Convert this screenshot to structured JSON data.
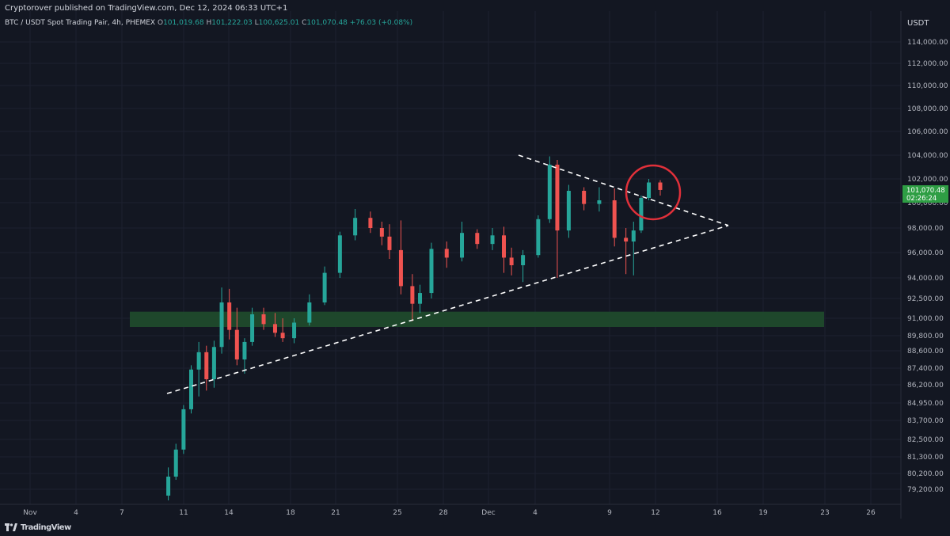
{
  "header": {
    "published_line": "Cryptorover published on TradingView.com, Dec 12, 2024 06:33 UTC+1"
  },
  "symbol_bar": {
    "name": "BTC / USDT Spot Trading Pair, 4h, PHEMEX",
    "open_key": "O",
    "open": "101,019.68",
    "high_key": "H",
    "high": "101,222.03",
    "low_key": "L",
    "low": "100,625.01",
    "close_key": "C",
    "close": "101,070.48",
    "change": "+76.03 (+0.08%)"
  },
  "price_axis": {
    "currency": "USDT",
    "labels": [
      "114,000.00",
      "112,000.00",
      "110,000.00",
      "108,000.00",
      "106,000.00",
      "104,000.00",
      "102,000.00",
      "100,000.00",
      "98,000.00",
      "96,000.00",
      "94,000.00",
      "92,500.00",
      "91,000.00",
      "89,800.00",
      "88,600.00",
      "87,400.00",
      "86,200.00",
      "84,950.00",
      "83,700.00",
      "82,500.00",
      "81,300.00",
      "80,200.00",
      "79,200.00"
    ],
    "current_price": "101,070.48",
    "countdown": "02:26:24"
  },
  "time_axis": {
    "labels": [
      "Nov",
      "4",
      "7",
      "11",
      "14",
      "18",
      "21",
      "25",
      "28",
      "Dec",
      "4",
      "9",
      "12",
      "16",
      "19",
      "23",
      "26"
    ]
  },
  "footer": {
    "brand": "TradingView"
  },
  "colors": {
    "background": "#131722",
    "up": "#26a69a",
    "down": "#ef5350",
    "support_zone": "#1f4a2c",
    "highlight_circle": "#e0303a",
    "price_tag": "#2e9e44"
  },
  "chart_data": {
    "type": "candlestick",
    "title": "BTC / USDT Spot Trading Pair, 4h, PHEMEX",
    "y_scale": "log",
    "ylim": [
      78500,
      116000
    ],
    "x_range": [
      "2024-11-01",
      "2024-12-27"
    ],
    "interval": "4h",
    "series": [
      {
        "date": "2024-11-10",
        "o": 78800,
        "h": 80600,
        "l": 78500,
        "c": 80000
      },
      {
        "date": "2024-11-10",
        "o": 80000,
        "h": 82200,
        "l": 79800,
        "c": 81800
      },
      {
        "date": "2024-11-11",
        "o": 81800,
        "h": 84800,
        "l": 81500,
        "c": 84500
      },
      {
        "date": "2024-11-11",
        "o": 84500,
        "h": 87600,
        "l": 84200,
        "c": 87300
      },
      {
        "date": "2024-11-12",
        "o": 87300,
        "h": 89300,
        "l": 85400,
        "c": 88500
      },
      {
        "date": "2024-11-12",
        "o": 88500,
        "h": 89000,
        "l": 85800,
        "c": 86600
      },
      {
        "date": "2024-11-13",
        "o": 86600,
        "h": 89400,
        "l": 86000,
        "c": 88900
      },
      {
        "date": "2024-11-13",
        "o": 88900,
        "h": 93300,
        "l": 88400,
        "c": 92200
      },
      {
        "date": "2024-11-14",
        "o": 92200,
        "h": 93200,
        "l": 89500,
        "c": 90200
      },
      {
        "date": "2024-11-14",
        "o": 90200,
        "h": 91800,
        "l": 87600,
        "c": 88000
      },
      {
        "date": "2024-11-15",
        "o": 88000,
        "h": 89600,
        "l": 87000,
        "c": 89300
      },
      {
        "date": "2024-11-15",
        "o": 89300,
        "h": 91800,
        "l": 89000,
        "c": 91300
      },
      {
        "date": "2024-11-16",
        "o": 91300,
        "h": 91800,
        "l": 90200,
        "c": 90600
      },
      {
        "date": "2024-11-17",
        "o": 90600,
        "h": 91400,
        "l": 89700,
        "c": 90000
      },
      {
        "date": "2024-11-17",
        "o": 90000,
        "h": 91000,
        "l": 89300,
        "c": 89600
      },
      {
        "date": "2024-11-18",
        "o": 89600,
        "h": 91000,
        "l": 89200,
        "c": 90700
      },
      {
        "date": "2024-11-19",
        "o": 90700,
        "h": 92800,
        "l": 90500,
        "c": 92200
      },
      {
        "date": "2024-11-20",
        "o": 92200,
        "h": 94900,
        "l": 92000,
        "c": 94400
      },
      {
        "date": "2024-11-21",
        "o": 94400,
        "h": 97700,
        "l": 94000,
        "c": 97400
      },
      {
        "date": "2024-11-22",
        "o": 97400,
        "h": 99500,
        "l": 97000,
        "c": 98800
      },
      {
        "date": "2024-11-23",
        "o": 98800,
        "h": 99300,
        "l": 97600,
        "c": 98000
      },
      {
        "date": "2024-11-24",
        "o": 98000,
        "h": 98500,
        "l": 96600,
        "c": 97300
      },
      {
        "date": "2024-11-24",
        "o": 97300,
        "h": 98300,
        "l": 95500,
        "c": 96200
      },
      {
        "date": "2024-11-25",
        "o": 96200,
        "h": 98600,
        "l": 92800,
        "c": 93400
      },
      {
        "date": "2024-11-26",
        "o": 93400,
        "h": 94300,
        "l": 90800,
        "c": 92100
      },
      {
        "date": "2024-11-26",
        "o": 92100,
        "h": 93500,
        "l": 91400,
        "c": 92900
      },
      {
        "date": "2024-11-27",
        "o": 92900,
        "h": 96800,
        "l": 92500,
        "c": 96300
      },
      {
        "date": "2024-11-28",
        "o": 96300,
        "h": 96900,
        "l": 94800,
        "c": 95600
      },
      {
        "date": "2024-11-29",
        "o": 95600,
        "h": 98500,
        "l": 95300,
        "c": 97600
      },
      {
        "date": "2024-11-30",
        "o": 97600,
        "h": 97900,
        "l": 96300,
        "c": 96700
      },
      {
        "date": "2024-12-01",
        "o": 96700,
        "h": 98000,
        "l": 96200,
        "c": 97400
      },
      {
        "date": "2024-12-02",
        "o": 97400,
        "h": 98100,
        "l": 94400,
        "c": 95600
      },
      {
        "date": "2024-12-02",
        "o": 95600,
        "h": 96400,
        "l": 94200,
        "c": 95000
      },
      {
        "date": "2024-12-03",
        "o": 95000,
        "h": 96200,
        "l": 93700,
        "c": 95800
      },
      {
        "date": "2024-12-04",
        "o": 95800,
        "h": 99000,
        "l": 95600,
        "c": 98700
      },
      {
        "date": "2024-12-05",
        "o": 98700,
        "h": 103900,
        "l": 98400,
        "c": 103200
      },
      {
        "date": "2024-12-05",
        "o": 103200,
        "h": 103600,
        "l": 94000,
        "c": 97800
      },
      {
        "date": "2024-12-06",
        "o": 97800,
        "h": 101500,
        "l": 97200,
        "c": 101000
      },
      {
        "date": "2024-12-07",
        "o": 101000,
        "h": 101300,
        "l": 99400,
        "c": 99900
      },
      {
        "date": "2024-12-08",
        "o": 99900,
        "h": 101300,
        "l": 99300,
        "c": 100200
      },
      {
        "date": "2024-12-09",
        "o": 100200,
        "h": 101200,
        "l": 96500,
        "c": 97200
      },
      {
        "date": "2024-12-10",
        "o": 97200,
        "h": 98000,
        "l": 94300,
        "c": 96900
      },
      {
        "date": "2024-12-10",
        "o": 96900,
        "h": 98500,
        "l": 94200,
        "c": 97800
      },
      {
        "date": "2024-12-11",
        "o": 97800,
        "h": 100600,
        "l": 97600,
        "c": 100400
      },
      {
        "date": "2024-12-11",
        "o": 100400,
        "h": 102000,
        "l": 100200,
        "c": 101700
      },
      {
        "date": "2024-12-12",
        "o": 101700,
        "h": 101900,
        "l": 100600,
        "c": 101070
      }
    ],
    "annotations": {
      "support_zone": {
        "from": 90400,
        "to": 91500
      },
      "ascending_trendline": [
        {
          "date": "2024-11-09",
          "price": 85600
        },
        {
          "date": "2024-12-16",
          "price": 98200
        }
      ],
      "descending_trendline": [
        {
          "date": "2024-11-30",
          "price": 104000
        },
        {
          "date": "2024-12-16",
          "price": 98200
        }
      ],
      "highlight_circle": {
        "date": "2024-12-12",
        "price": 101100
      }
    }
  }
}
